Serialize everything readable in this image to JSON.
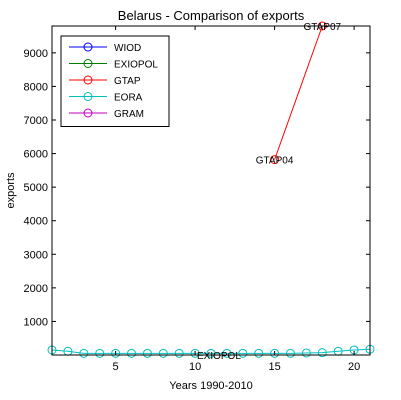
{
  "chart_data": {
    "type": "scatter",
    "title": "Belarus - Comparison of exports",
    "xlabel": "Years 1990-2010",
    "ylabel": "exports",
    "xlim": [
      1,
      21
    ],
    "ylim": [
      0,
      9800
    ],
    "xticks": [
      5,
      10,
      15,
      20
    ],
    "yticks": [
      1000,
      2000,
      3000,
      4000,
      5000,
      6000,
      7000,
      8000,
      9000
    ],
    "grid": false,
    "legend_position": "top-left",
    "series": [
      {
        "name": "WIOD",
        "color": "#0000ff",
        "marker": "circle",
        "line": true,
        "points": []
      },
      {
        "name": "EXIOPOL",
        "color": "#008000",
        "marker": "circle",
        "line": true,
        "points": []
      },
      {
        "name": "GTAP",
        "color": "#ff0000",
        "marker": "circle",
        "line": true,
        "points": [
          {
            "x": 15,
            "y": 5820
          },
          {
            "x": 18,
            "y": 9800
          }
        ]
      },
      {
        "name": "EORA",
        "color": "#00bfbf",
        "marker": "circle",
        "line": true,
        "points": [
          {
            "x": 1,
            "y": 150
          },
          {
            "x": 2,
            "y": 110
          },
          {
            "x": 3,
            "y": 50
          },
          {
            "x": 4,
            "y": 50
          },
          {
            "x": 5,
            "y": 50
          },
          {
            "x": 6,
            "y": 50
          },
          {
            "x": 7,
            "y": 50
          },
          {
            "x": 8,
            "y": 50
          },
          {
            "x": 9,
            "y": 50
          },
          {
            "x": 10,
            "y": 50
          },
          {
            "x": 11,
            "y": 50
          },
          {
            "x": 12,
            "y": 50
          },
          {
            "x": 13,
            "y": 50
          },
          {
            "x": 14,
            "y": 50
          },
          {
            "x": 15,
            "y": 50
          },
          {
            "x": 16,
            "y": 50
          },
          {
            "x": 17,
            "y": 60
          },
          {
            "x": 18,
            "y": 70
          },
          {
            "x": 19,
            "y": 110
          },
          {
            "x": 20,
            "y": 150
          },
          {
            "x": 21,
            "y": 170
          }
        ]
      },
      {
        "name": "GRAM",
        "color": "#bf00bf",
        "marker": "circle",
        "line": true,
        "points": []
      }
    ],
    "annotations": [
      {
        "text": "GTAP07",
        "x": 18,
        "y": 9800
      },
      {
        "text": "GTAP04",
        "x": 15,
        "y": 5820
      },
      {
        "text": "EXIOPOL",
        "x": 11.5,
        "y": 0
      }
    ]
  }
}
